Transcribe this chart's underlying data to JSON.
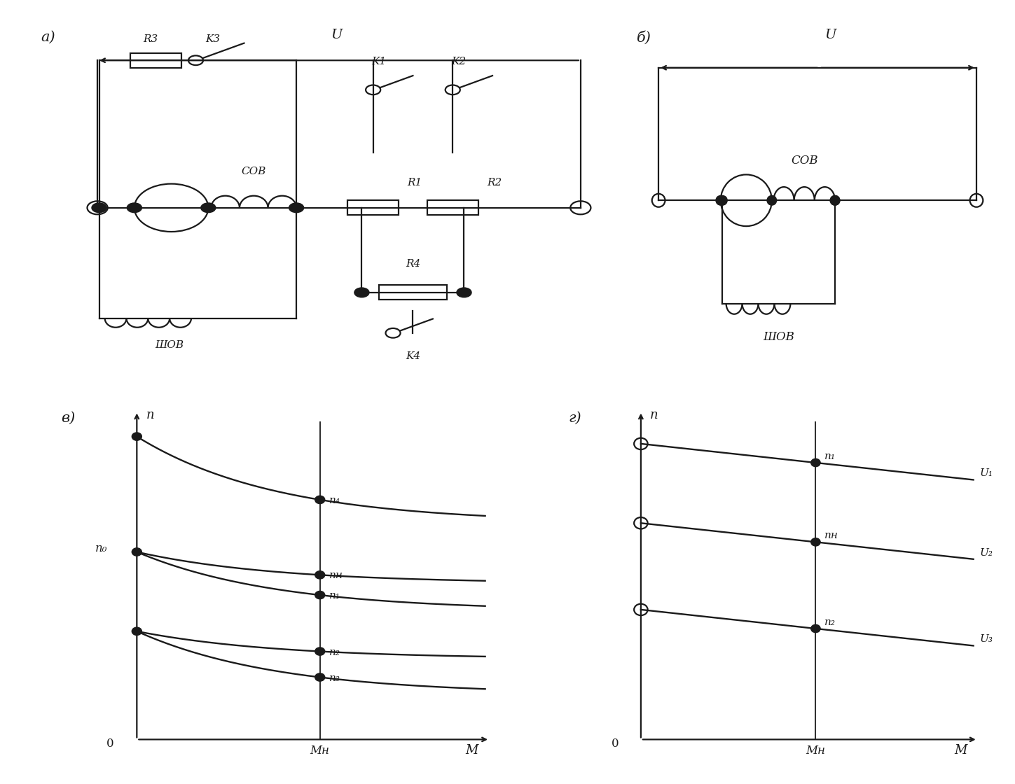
{
  "bg_color": "#ffffff",
  "line_color": "#1a1a1a",
  "title_a": "а)",
  "title_b": "б)",
  "title_v": "в)",
  "title_g": "г)",
  "label_U": "U",
  "label_n": "n",
  "label_M": "M",
  "label_O": "0",
  "label_MH": "Mн",
  "label_n0": "n₀",
  "label_n4": "n₄",
  "label_nH": "nн",
  "label_n1": "n₁",
  "label_n2": "n₂",
  "label_n3": "n₃",
  "label_U1": "U₁",
  "label_U2": "U₂",
  "label_U3": "U₃",
  "label_R3": "R3",
  "label_K3": "K3",
  "label_K1": "K1",
  "label_K2": "K2",
  "label_COB": "COB",
  "label_R1": "R1",
  "label_R2": "R2",
  "label_SHOB": "ШОВ",
  "label_R4": "R4",
  "label_K4": "K4"
}
